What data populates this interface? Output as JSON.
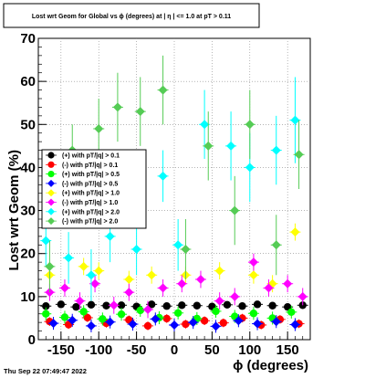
{
  "chart_data": {
    "type": "scatter",
    "title": "Lost wrt Geom for Global vs ϕ (degrees) at |  η | <= 1.0 at pT > 0.11",
    "xlabel": "ϕ (degrees)",
    "ylabel": "Lost wrt Geom (%)",
    "xlim": [
      -180,
      180
    ],
    "ylim": [
      0,
      70
    ],
    "xticks": [
      -150,
      -100,
      -50,
      0,
      50,
      100,
      150
    ],
    "yticks": [
      0,
      10,
      20,
      30,
      40,
      50,
      60,
      70
    ],
    "timestamp": "Thu Sep 22 07:49:47 2022",
    "legend_position": "left, middle",
    "series": [
      {
        "name": "(+) with pT/|q| > 0.1",
        "color": "#000000",
        "x": [
          -170,
          -150,
          -130,
          -110,
          -90,
          -70,
          -50,
          -30,
          -10,
          10,
          30,
          50,
          70,
          90,
          110,
          130,
          150,
          170
        ],
        "y": [
          7.8,
          8.2,
          7.6,
          8.1,
          7.9,
          8.0,
          7.7,
          8.2,
          7.8,
          8.0,
          7.9,
          7.7,
          8.1,
          7.8,
          8.2,
          7.9,
          7.6,
          8.0
        ],
        "err": [
          0.8,
          0.8,
          0.8,
          0.8,
          0.8,
          0.8,
          0.8,
          0.8,
          0.8,
          0.8,
          0.8,
          0.8,
          0.8,
          0.8,
          0.8,
          0.8,
          0.8,
          0.8
        ]
      },
      {
        "name": "(-) with pT/|q| > 0.1",
        "color": "#ff0000",
        "x": [
          -165,
          -140,
          -115,
          -90,
          -60,
          -35,
          -10,
          15,
          40,
          65,
          90,
          115,
          140,
          165
        ],
        "y": [
          4.2,
          3.5,
          5.1,
          3.8,
          4.6,
          3.2,
          4.9,
          3.6,
          4.4,
          3.9,
          5.0,
          3.4,
          4.7,
          3.7
        ],
        "err": [
          1.0,
          1.0,
          1.0,
          1.0,
          1.0,
          1.0,
          1.0,
          1.0,
          1.0,
          1.0,
          1.0,
          1.0,
          1.0,
          1.0
        ]
      },
      {
        "name": "(+) with pT/|q| > 0.5",
        "color": "#00ff00",
        "x": [
          -170,
          -145,
          -120,
          -95,
          -70,
          -45,
          -20,
          5,
          30,
          55,
          80,
          105,
          130,
          155
        ],
        "y": [
          6.0,
          5.2,
          6.5,
          4.8,
          5.9,
          6.8,
          5.1,
          6.2,
          4.9,
          6.6,
          5.4,
          6.1,
          5.0,
          6.4
        ],
        "err": [
          1.5,
          1.5,
          1.5,
          1.5,
          1.5,
          1.5,
          1.5,
          1.5,
          1.5,
          1.5,
          1.5,
          1.5,
          1.5,
          1.5
        ]
      },
      {
        "name": "(-) with pT/|q| > 0.5",
        "color": "#0000ff",
        "x": [
          -160,
          -135,
          -110,
          -85,
          -55,
          -25,
          0,
          25,
          55,
          85,
          110,
          135,
          160
        ],
        "y": [
          3.8,
          4.5,
          3.2,
          4.1,
          3.6,
          4.8,
          3.4,
          4.0,
          3.1,
          4.4,
          3.7,
          4.2,
          3.5
        ],
        "err": [
          1.5,
          1.5,
          1.5,
          1.5,
          1.5,
          1.5,
          1.5,
          1.5,
          1.5,
          1.5,
          1.5,
          1.5,
          1.5
        ]
      },
      {
        "name": "(+) with pT/|q| > 1.0",
        "color": "#ffff00",
        "x": [
          -165,
          -120,
          -100,
          -60,
          -30,
          15,
          60,
          105,
          130,
          160
        ],
        "y": [
          15.0,
          17.0,
          16.0,
          14.0,
          15.0,
          15.0,
          16.0,
          15.0,
          13.0,
          25.0
        ],
        "err": [
          2.0,
          2.0,
          2.0,
          2.0,
          2.0,
          2.0,
          2.0,
          2.0,
          2.0,
          2.0
        ]
      },
      {
        "name": "(-) with pT/|q| > 1.0",
        "color": "#ff00ff",
        "x": [
          -165,
          -145,
          -125,
          -105,
          -80,
          -60,
          -35,
          -15,
          10,
          35,
          60,
          80,
          105,
          125,
          150,
          170
        ],
        "y": [
          11.0,
          12.0,
          9.0,
          13.0,
          8.0,
          11.0,
          7.0,
          12.0,
          13.0,
          14.0,
          9.0,
          10.0,
          18.0,
          12.0,
          13.0,
          10.0
        ],
        "err": [
          2.0,
          2.0,
          2.0,
          2.0,
          2.0,
          2.0,
          2.0,
          2.0,
          2.0,
          2.0,
          2.0,
          2.0,
          2.0,
          2.0,
          2.0,
          2.0
        ]
      },
      {
        "name": "(+) with pT/|q| > 2.0",
        "color": "#00ffff",
        "x": [
          -170,
          -140,
          -110,
          -85,
          -50,
          -15,
          5,
          40,
          75,
          100,
          135,
          160
        ],
        "y": [
          23.0,
          19.0,
          15.0,
          24.0,
          21.0,
          38.0,
          22.0,
          50.0,
          45.0,
          40.0,
          44.0,
          51.0
        ],
        "err": [
          6.0,
          6.0,
          6.0,
          6.0,
          6.0,
          6.0,
          6.0,
          8.0,
          8.0,
          8.0,
          8.0,
          10.0
        ]
      },
      {
        "name": "(-) with pT/|q| > 2.0",
        "color": "#55cc55",
        "x": [
          -165,
          -135,
          -100,
          -75,
          -45,
          -15,
          15,
          45,
          80,
          100,
          135,
          165
        ],
        "y": [
          17.0,
          44.0,
          49.0,
          54.0,
          53.0,
          58.0,
          21.0,
          45.0,
          30.0,
          50.0,
          22.0,
          43.0
        ],
        "err": [
          6.0,
          6.0,
          7.0,
          8.0,
          8.0,
          8.0,
          7.0,
          8.0,
          8.0,
          8.0,
          7.0,
          8.0
        ]
      }
    ]
  }
}
